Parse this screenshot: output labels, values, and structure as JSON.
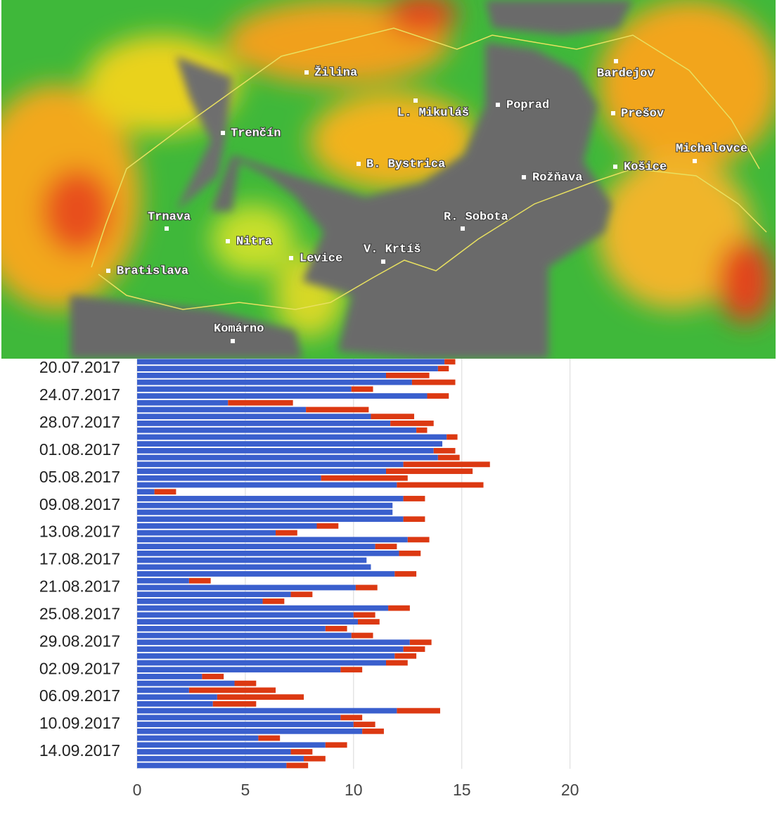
{
  "chart_data": {
    "type": "stacked-bar-horizontal",
    "categories": [
      null,
      "20.07.2017",
      null,
      null,
      null,
      "24.07.2017",
      null,
      null,
      null,
      "28.07.2017",
      null,
      null,
      null,
      "01.08.2017",
      null,
      null,
      null,
      "05.08.2017",
      null,
      null,
      null,
      "09.08.2017",
      null,
      null,
      null,
      "13.08.2017",
      null,
      null,
      null,
      "17.08.2017",
      null,
      null,
      null,
      "21.08.2017",
      null,
      null,
      null,
      "25.08.2017",
      null,
      null,
      null,
      "29.08.2017",
      null,
      null,
      null,
      "02.09.2017",
      null,
      null,
      null,
      "06.09.2017",
      null,
      null,
      null,
      "10.09.2017",
      null,
      null,
      null,
      "14.09.2017",
      null,
      null
    ],
    "series": [
      {
        "color": "#3a5fcd",
        "values": [
          14.2,
          13.9,
          11.5,
          12.7,
          9.9,
          13.4,
          4.2,
          7.8,
          10.8,
          11.7,
          12.9,
          14.3,
          14.1,
          13.7,
          13.9,
          12.3,
          11.5,
          8.5,
          12.0,
          0.8,
          12.3,
          11.8,
          11.8,
          12.3,
          8.3,
          6.4,
          12.5,
          11.0,
          12.1,
          10.6,
          10.8,
          11.9,
          2.4,
          10.1,
          7.1,
          5.8,
          11.6,
          10.0,
          10.2,
          8.7,
          9.9,
          12.6,
          12.3,
          11.9,
          11.5,
          9.4,
          3.0,
          4.5,
          2.4,
          3.7,
          3.5,
          12.0,
          9.4,
          10.0,
          10.4,
          5.6,
          8.7,
          7.1,
          7.7,
          6.9
        ]
      },
      {
        "color": "#dc3912",
        "values": [
          0.5,
          0.5,
          2.0,
          2.0,
          1.0,
          1.0,
          3.0,
          2.9,
          2.0,
          2.0,
          0.5,
          0.5,
          0,
          1.0,
          1.0,
          4.0,
          4.0,
          4.0,
          4.0,
          1.0,
          1.0,
          0,
          0,
          1.0,
          1.0,
          1.0,
          1.0,
          1.0,
          1.0,
          0,
          0,
          1.0,
          1.0,
          1.0,
          1.0,
          1.0,
          1.0,
          1.0,
          1.0,
          1.0,
          1.0,
          1.0,
          1.0,
          1.0,
          1.0,
          1.0,
          1.0,
          1.0,
          4.0,
          4.0,
          2.0,
          2.0,
          1.0,
          1.0,
          1.0,
          1.0,
          1.0,
          1.0,
          1.0,
          1.0
        ]
      }
    ],
    "xlim": [
      0,
      29.4
    ],
    "xticks": [
      0,
      5,
      10,
      15,
      20
    ],
    "grid": true
  },
  "map": {
    "cities": [
      {
        "label": "Žilina"
      },
      {
        "label": "L. Mikuláš"
      },
      {
        "label": "Poprad"
      },
      {
        "label": "Bardejov"
      },
      {
        "label": "Prešov"
      },
      {
        "label": "Michalovce"
      },
      {
        "label": "Košice"
      },
      {
        "label": "Rožňava"
      },
      {
        "label": "B. Bystrica"
      },
      {
        "label": "Trenčín"
      },
      {
        "label": "Trnava"
      },
      {
        "label": "Nitra"
      },
      {
        "label": "Levice"
      },
      {
        "label": "V. Krtíš"
      },
      {
        "label": "R. Sobota"
      },
      {
        "label": "Bratislava"
      },
      {
        "label": "Komárno"
      }
    ]
  }
}
